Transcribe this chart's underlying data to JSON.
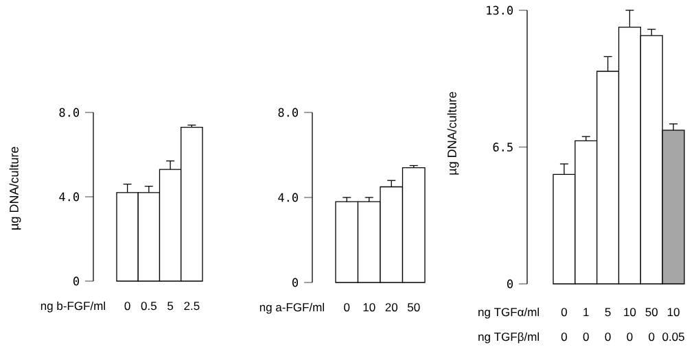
{
  "chart_data": [
    {
      "type": "bar",
      "xlabel": "ng b-FGF/ml",
      "ylabel": "µg DNA/culture",
      "categories": [
        "0",
        "0.5",
        "5",
        "2.5"
      ],
      "values": [
        4.2,
        4.2,
        5.3,
        7.3
      ],
      "errors": [
        0.4,
        0.3,
        0.4,
        0.1
      ],
      "colors": [
        "#ffffff",
        "#ffffff",
        "#ffffff",
        "#ffffff"
      ],
      "ylim": [
        0,
        8
      ],
      "yticks": [
        0,
        {
          "value": 4,
          "label": "4.0"
        },
        {
          "value": 8,
          "label": "8.0"
        }
      ]
    },
    {
      "type": "bar",
      "xlabel": "ng a-FGF/ml",
      "categories": [
        "0",
        "10",
        "20",
        "50"
      ],
      "values": [
        3.8,
        3.8,
        4.5,
        5.4
      ],
      "errors": [
        0.2,
        0.2,
        0.3,
        0.1
      ],
      "colors": [
        "#ffffff",
        "#ffffff",
        "#ffffff",
        "#ffffff"
      ],
      "ylim": [
        0,
        8
      ],
      "yticks": [
        0,
        {
          "value": 4,
          "label": "4.0"
        },
        {
          "value": 8,
          "label": "8.0"
        }
      ]
    },
    {
      "type": "bar",
      "xlabel": "ng TGFα/ml",
      "ylabel": "µg DNA/culture",
      "categories": [
        "0",
        "1",
        "5",
        "10",
        "50",
        "10"
      ],
      "values": [
        5.2,
        6.8,
        10.1,
        12.2,
        11.8,
        7.3
      ],
      "errors": [
        0.5,
        0.2,
        0.7,
        0.8,
        0.3,
        0.3
      ],
      "colors": [
        "#ffffff",
        "#ffffff",
        "#ffffff",
        "#ffffff",
        "#ffffff",
        "#a6a6a6"
      ],
      "ylim": [
        0,
        13
      ],
      "yticks": [
        0,
        6.5,
        {
          "value": 13,
          "label": "13.0"
        }
      ],
      "annotations": [
        "ng TGFβ/ml",
        "0",
        "0",
        "0",
        "0",
        "0",
        "0.05"
      ]
    }
  ]
}
